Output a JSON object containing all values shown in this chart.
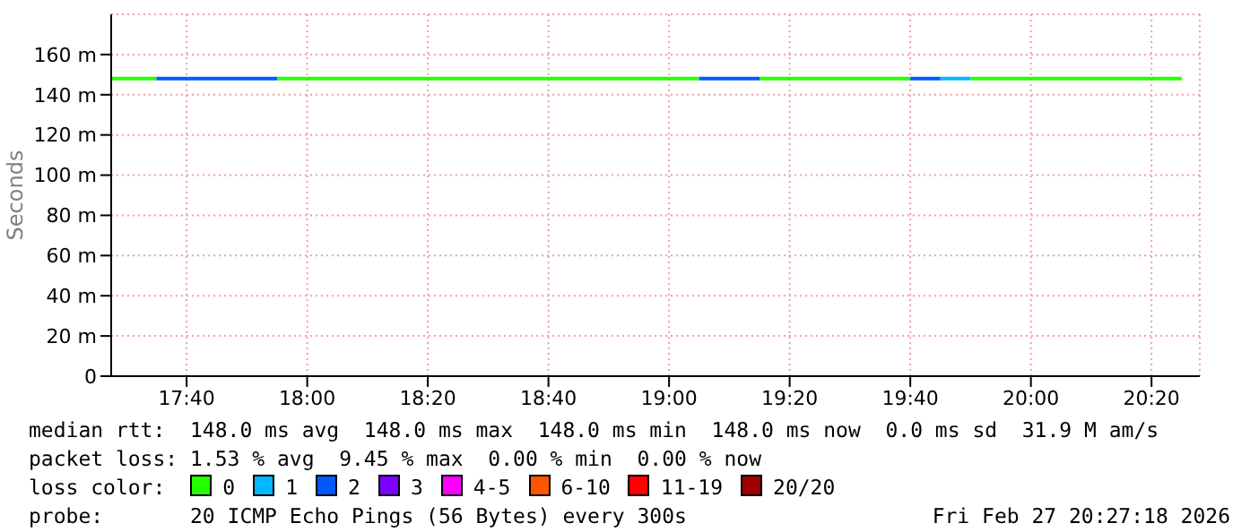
{
  "chart_data": {
    "type": "line",
    "ylabel": "Seconds",
    "legend_title": "loss color:",
    "xlim": [
      17.4583,
      20.4667
    ],
    "xticks": [
      {
        "value": 17.6667,
        "label": "17:40"
      },
      {
        "value": 18,
        "label": "18:00"
      },
      {
        "value": 18.3333,
        "label": "18:20"
      },
      {
        "value": 18.6667,
        "label": "18:40"
      },
      {
        "value": 19,
        "label": "19:00"
      },
      {
        "value": 19.3333,
        "label": "19:20"
      },
      {
        "value": 19.6667,
        "label": "19:40"
      },
      {
        "value": 20,
        "label": "20:00"
      },
      {
        "value": 20.3333,
        "label": "20:20"
      }
    ],
    "ylim": [
      0,
      180
    ],
    "yticks": [
      0,
      {
        "value": 20,
        "label": "20 m"
      },
      {
        "value": 40,
        "label": "40 m"
      },
      {
        "value": 60,
        "label": "60 m"
      },
      {
        "value": 80,
        "label": "80 m"
      },
      {
        "value": 100,
        "label": "100 m"
      },
      {
        "value": 120,
        "label": "120 m"
      },
      {
        "value": 140,
        "label": "140 m"
      },
      {
        "value": 160,
        "label": "160 m"
      }
    ],
    "grid": true,
    "legend": "bottom",
    "marker": "none",
    "line_style": "solid",
    "series": [
      {
        "name": "0",
        "color": "#26ff00",
        "x": [
          17.4583,
          17.5833,
          17.75,
          17.9167,
          19.0833,
          19.1667,
          19.25,
          19.6667,
          19.75,
          19.8333,
          20.4167
        ],
        "values": [
          148,
          148,
          null,
          148,
          148,
          null,
          148,
          148,
          null,
          148,
          148
        ]
      },
      {
        "name": "1",
        "color": "#00b8ff",
        "x": [
          19.75,
          19.8333
        ],
        "values": [
          148,
          148
        ]
      },
      {
        "name": "2",
        "color": "#0059ff",
        "x": [
          17.5833,
          17.9167,
          18.5,
          19.0833,
          19.25,
          19.5,
          19.6667,
          19.75
        ],
        "values": [
          148,
          148,
          null,
          148,
          148,
          null,
          148,
          148
        ]
      },
      {
        "name": "3",
        "color": "#7e00ff"
      },
      {
        "name": "4-5",
        "color": "#ff00ff"
      },
      {
        "name": "6-10",
        "color": "#ff5500"
      },
      {
        "name": "11-19",
        "color": "#ff0000"
      },
      {
        "name": "20/20",
        "color": "#a10000"
      }
    ],
    "annotations": [
      "median rtt:  148.0 ms avg  148.0 ms max  148.0 ms min  148.0 ms now  0.0 ms sd  31.9 M am/s",
      "packet loss: 1.53 % avg  9.45 % max  0.00 % min  0.00 % now",
      "probe:       20 ICMP Echo Pings (56 Bytes) every 300s",
      "Fri Feb 27 20:27:18 2026"
    ]
  }
}
